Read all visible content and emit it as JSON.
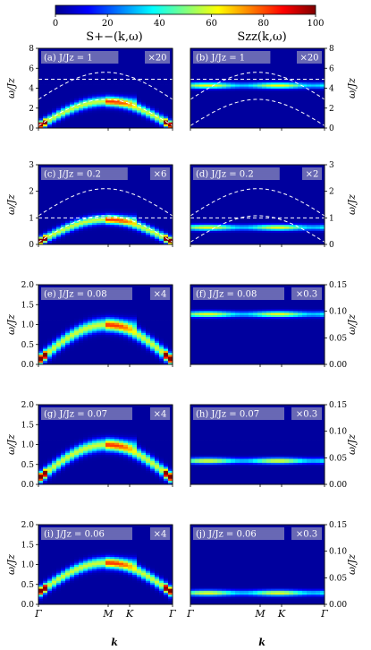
{
  "colorbar": {
    "ticks": [
      "0",
      "20",
      "40",
      "60",
      "80",
      "100"
    ],
    "range": [
      0,
      100
    ],
    "colormap": "jet"
  },
  "column_titles": {
    "left": "S+−(k,ω)",
    "right": "Szz(k,ω)"
  },
  "x_axis": {
    "label": "k",
    "ticks": [
      "Γ",
      "M",
      "K",
      "Γ"
    ]
  },
  "chart_data": [
    {
      "type": "heatmap",
      "panel": "a",
      "label": "(a) J/Jz = 1",
      "scale": "×20",
      "ylabel": "ω/Jz",
      "ylim": [
        0,
        8
      ],
      "yticks": [
        "0",
        "2",
        "4",
        "6",
        "8"
      ],
      "yside": "left",
      "flat_band": 4.9,
      "kind": "S+-",
      "band_min": 0.2,
      "band_max": 2.7
    },
    {
      "type": "heatmap",
      "panel": "b",
      "label": "(b) J/Jz = 1",
      "scale": "×20",
      "ylabel": "ω/Jz",
      "ylim": [
        0,
        8
      ],
      "yticks": [
        "0",
        "2",
        "4",
        "6",
        "8"
      ],
      "yside": "right",
      "flat_band": 4.9,
      "kind": "Szz",
      "band_level": 4.3
    },
    {
      "type": "heatmap",
      "panel": "c",
      "label": "(c) J/Jz = 0.2",
      "scale": "×6",
      "ylabel": "ω/Jz",
      "ylim": [
        0,
        3
      ],
      "yticks": [
        "0",
        "1",
        "2",
        "3"
      ],
      "yside": "left",
      "flat_band": 1.0,
      "kind": "S+-",
      "band_min": 0.1,
      "band_max": 0.95
    },
    {
      "type": "heatmap",
      "panel": "d",
      "label": "(d) J/Jz = 0.2",
      "scale": "×2",
      "ylabel": "ω/Jz",
      "ylim": [
        0,
        3
      ],
      "yticks": [
        "0",
        "1",
        "2",
        "3"
      ],
      "yside": "right",
      "flat_band": 1.0,
      "kind": "Szz",
      "band_level": 0.65
    },
    {
      "type": "heatmap",
      "panel": "e",
      "label": "(e) J/Jz = 0.08",
      "scale": "×4",
      "ylabel": "ω/Jz",
      "ylim": [
        0,
        2
      ],
      "yticks": [
        "0.0",
        "0.5",
        "1.0",
        "1.5",
        "2.0"
      ],
      "yside": "left",
      "kind": "S+-",
      "band_min": 0.1,
      "band_max": 1.0
    },
    {
      "type": "heatmap",
      "panel": "f",
      "label": "(f) J/Jz = 0.08",
      "scale": "×0.3",
      "ylabel": "ω/Jz",
      "ylim": [
        0,
        0.15
      ],
      "yticks": [
        "0.00",
        "0.05",
        "0.10",
        "0.15"
      ],
      "yside": "right",
      "kind": "Szz",
      "band_level": 0.095
    },
    {
      "type": "heatmap",
      "panel": "g",
      "label": "(g) J/Jz = 0.07",
      "scale": "×4",
      "ylabel": "ω/Jz",
      "ylim": [
        0,
        2
      ],
      "yticks": [
        "0.0",
        "0.5",
        "1.0",
        "1.5",
        "2.0"
      ],
      "yside": "left",
      "kind": "S+-",
      "band_min": 0.15,
      "band_max": 1.0
    },
    {
      "type": "heatmap",
      "panel": "h",
      "label": "(h) J/Jz = 0.07",
      "scale": "×0.3",
      "ylabel": "ω/Jz",
      "ylim": [
        0,
        0.15
      ],
      "yticks": [
        "0.00",
        "0.05",
        "0.10",
        "0.15"
      ],
      "yside": "right",
      "kind": "Szz",
      "band_level": 0.045
    },
    {
      "type": "heatmap",
      "panel": "i",
      "label": "(i) J/Jz = 0.06",
      "scale": "×4",
      "ylabel": "ω/Jz",
      "ylim": [
        0,
        2
      ],
      "yticks": [
        "0.0",
        "0.5",
        "1.0",
        "1.5",
        "2.0"
      ],
      "yside": "left",
      "kind": "S+-",
      "band_min": 0.3,
      "band_max": 1.05
    },
    {
      "type": "heatmap",
      "panel": "j",
      "label": "(j) J/Jz = 0.06",
      "scale": "×0.3",
      "ylabel": "ω/Jz",
      "ylim": [
        0,
        0.15
      ],
      "yticks": [
        "0.00",
        "0.05",
        "0.10",
        "0.15"
      ],
      "yside": "right",
      "kind": "Szz",
      "band_level": 0.022
    }
  ]
}
